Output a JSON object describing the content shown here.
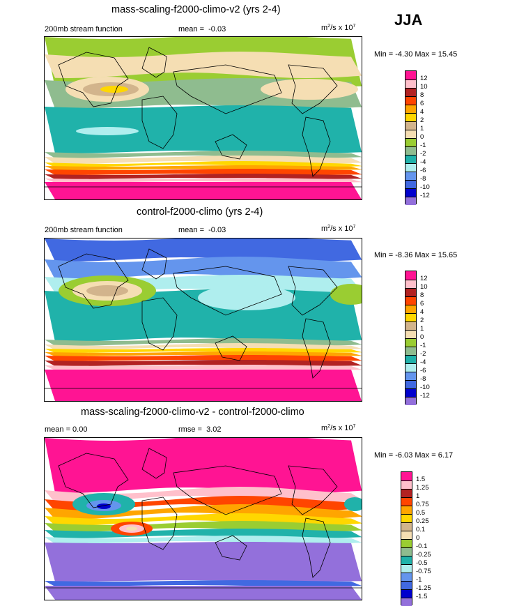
{
  "season_label": "JJA",
  "panels": [
    {
      "title": "mass-scaling-f2000-climo-v2 (yrs 2-4)",
      "left_text": "200mb stream function",
      "mid_label": "mean =",
      "mid_value": "-0.03",
      "units_base": "m",
      "units_exp1": "2",
      "units_mid": "/s x 10",
      "units_exp2": "7",
      "minmax": "Min =  -4.30 Max =  15.45",
      "levels": [
        "12",
        "10",
        "8",
        "6",
        "4",
        "2",
        "1",
        "0",
        "-1",
        "-2",
        "-4",
        "-6",
        "-8",
        "-10",
        "-12"
      ],
      "colors": [
        "#ff1493",
        "#ffc0cb",
        "#b22222",
        "#ff4500",
        "#ffa500",
        "#ffd700",
        "#d2b48c",
        "#f5deb3",
        "#9acd32",
        "#8fbc8f",
        "#20b2aa",
        "#afeeee",
        "#6495ed",
        "#4169e1",
        "#0000cd",
        "#9370db"
      ]
    },
    {
      "title": "control-f2000-climo (yrs 2-4)",
      "left_text": "200mb stream function",
      "mid_label": "mean =",
      "mid_value": "-0.03",
      "units_base": "m",
      "units_exp1": "2",
      "units_mid": "/s x 10",
      "units_exp2": "7",
      "minmax": "Min =  -8.36 Max =  15.65",
      "levels": [
        "12",
        "10",
        "8",
        "6",
        "4",
        "2",
        "1",
        "0",
        "-1",
        "-2",
        "-4",
        "-6",
        "-8",
        "-10",
        "-12"
      ],
      "colors": [
        "#ff1493",
        "#ffc0cb",
        "#b22222",
        "#ff4500",
        "#ffa500",
        "#ffd700",
        "#d2b48c",
        "#f5deb3",
        "#9acd32",
        "#8fbc8f",
        "#20b2aa",
        "#afeeee",
        "#6495ed",
        "#4169e1",
        "#0000cd",
        "#9370db"
      ]
    },
    {
      "title": "mass-scaling-f2000-climo-v2 - control-f2000-climo",
      "left_text": "mean =   0.00",
      "mid_label": "rmse =",
      "mid_value": "3.02",
      "units_base": "m",
      "units_exp1": "2",
      "units_mid": "/s x 10",
      "units_exp2": "7",
      "minmax": "Min =  -6.03 Max =   6.17",
      "levels": [
        "1.5",
        "1.25",
        "1",
        "0.75",
        "0.5",
        "0.25",
        "0.1",
        "0",
        "-0.1",
        "-0.25",
        "-0.5",
        "-0.75",
        "-1",
        "-1.25",
        "-1.5"
      ],
      "colors": [
        "#ff1493",
        "#ffc0cb",
        "#b22222",
        "#ff4500",
        "#ffa500",
        "#ffd700",
        "#d2b48c",
        "#f5deb3",
        "#9acd32",
        "#8fbc8f",
        "#20b2aa",
        "#afeeee",
        "#6495ed",
        "#4169e1",
        "#0000cd",
        "#9370db"
      ]
    }
  ],
  "chart_data": [
    {
      "type": "heatmap",
      "title": "mass-scaling-f2000-climo-v2 (yrs 2-4)",
      "variable": "200mb stream function",
      "units": "m2/s x 10^7",
      "mean": -0.03,
      "min": -4.3,
      "max": 15.45,
      "contour_levels": [
        -12,
        -10,
        -8,
        -6,
        -4,
        -2,
        -1,
        0,
        1,
        2,
        4,
        6,
        8,
        10,
        12
      ]
    },
    {
      "type": "heatmap",
      "title": "control-f2000-climo (yrs 2-4)",
      "variable": "200mb stream function",
      "units": "m2/s x 10^7",
      "mean": -0.03,
      "min": -8.36,
      "max": 15.65,
      "contour_levels": [
        -12,
        -10,
        -8,
        -6,
        -4,
        -2,
        -1,
        0,
        1,
        2,
        4,
        6,
        8,
        10,
        12
      ]
    },
    {
      "type": "heatmap",
      "title": "mass-scaling-f2000-climo-v2 - control-f2000-climo",
      "units": "m2/s x 10^7",
      "mean": 0.0,
      "rmse": 3.02,
      "min": -6.03,
      "max": 6.17,
      "contour_levels": [
        -1.5,
        -1.25,
        -1,
        -0.75,
        -0.5,
        -0.25,
        -0.1,
        0,
        0.1,
        0.25,
        0.5,
        0.75,
        1,
        1.25,
        1.5
      ]
    }
  ]
}
